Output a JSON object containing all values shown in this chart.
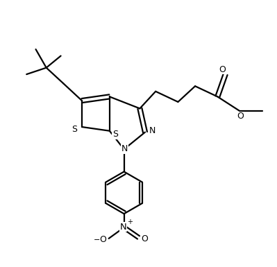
{
  "bg_color": "#ffffff",
  "line_color": "#000000",
  "bond_lw": 1.6,
  "figsize": [
    3.99,
    3.85
  ],
  "dpi": 100,
  "xlim": [
    0,
    10
  ],
  "ylim": [
    0,
    10
  ]
}
